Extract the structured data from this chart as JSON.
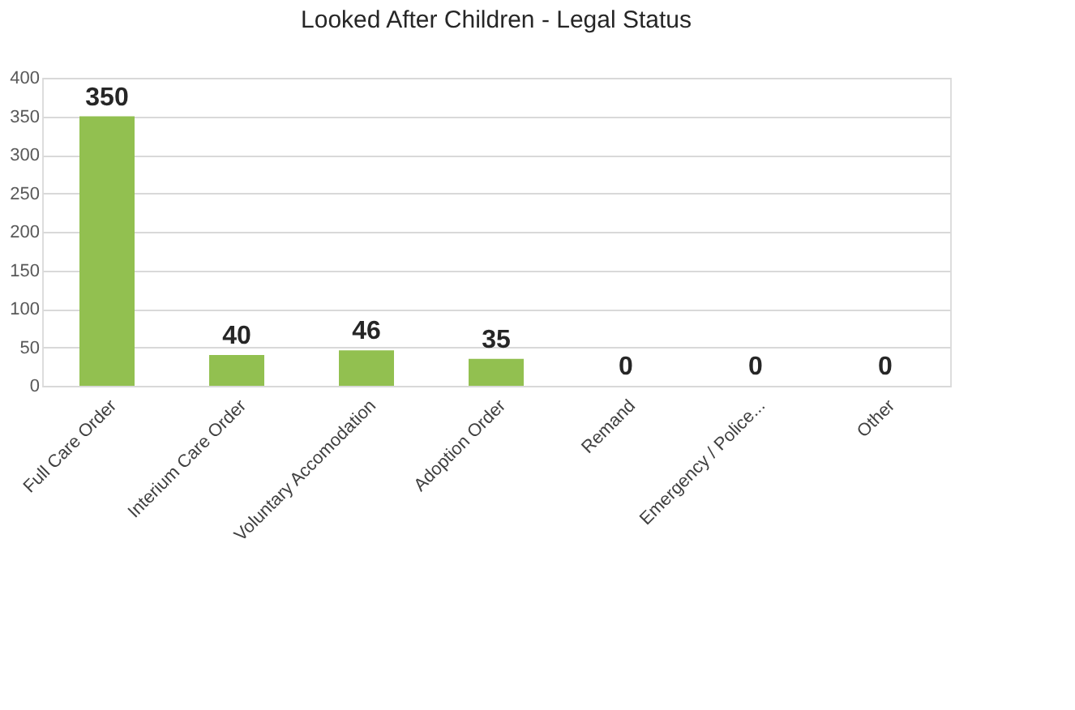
{
  "chart_data": {
    "type": "bar",
    "title": "Looked After Children - Legal Status",
    "categories": [
      "Full Care Order",
      "Interium Care Order",
      "Voluntary Accomodation",
      "Adoption Order",
      "Remand",
      "Emergency / Police...",
      "Other"
    ],
    "values": [
      350,
      40,
      46,
      35,
      0,
      0,
      0
    ],
    "color": "#92c050",
    "ylim": [
      0,
      400
    ],
    "yticks": [
      0,
      50,
      100,
      150,
      200,
      250,
      300,
      350,
      400
    ],
    "grid": "y",
    "data_labels": true
  }
}
